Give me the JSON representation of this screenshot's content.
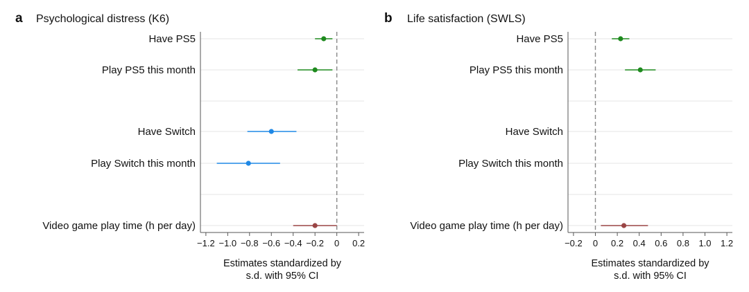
{
  "chart_data": [
    {
      "type": "forest",
      "panel_letter": "a",
      "title": "Psychological distress (K6)",
      "xlabel_lines": [
        "Estimates standardized by",
        "s.d. with 95% CI"
      ],
      "xlim": [
        -1.25,
        0.25
      ],
      "xticks": [
        -1.2,
        -1.0,
        -0.8,
        -0.6,
        -0.4,
        -0.2,
        0,
        0.2
      ],
      "xtick_labels": [
        "−1.2",
        "−1.0",
        "−0.8",
        "−0.6",
        "−0.4",
        "−0.2",
        "0",
        "0.2"
      ],
      "reference_line": 0,
      "rows": [
        {
          "label": "Have PS5",
          "estimate": -0.12,
          "ci": [
            -0.2,
            -0.04
          ],
          "color": "#1e8a1e"
        },
        {
          "label": "Play PS5 this month",
          "estimate": -0.2,
          "ci": [
            -0.36,
            -0.04
          ],
          "color": "#1e8a1e"
        },
        {
          "label": "Have Switch",
          "estimate": -0.6,
          "ci": [
            -0.82,
            -0.37
          ],
          "color": "#1f88e5"
        },
        {
          "label": "Play Switch this month",
          "estimate": -0.81,
          "ci": [
            -1.1,
            -0.52
          ],
          "color": "#1f88e5"
        },
        {
          "label": "Video game play time (h per day)",
          "estimate": -0.2,
          "ci": [
            -0.4,
            0.0
          ],
          "color": "#9a4545"
        }
      ]
    },
    {
      "type": "forest",
      "panel_letter": "b",
      "title": "Life satisfaction (SWLS)",
      "xlabel_lines": [
        "Estimates standardized by",
        "s.d. with 95% CI"
      ],
      "xlim": [
        -0.25,
        1.25
      ],
      "xticks": [
        -0.2,
        0,
        0.2,
        0.4,
        0.6,
        0.8,
        1.0,
        1.2
      ],
      "xtick_labels": [
        "−0.2",
        "0",
        "0.2",
        "0.4",
        "0.6",
        "0.8",
        "1.0",
        "1.2"
      ],
      "reference_line": 0,
      "rows": [
        {
          "label": "Have PS5",
          "estimate": 0.23,
          "ci": [
            0.15,
            0.31
          ],
          "color": "#1e8a1e"
        },
        {
          "label": "Play PS5 this month",
          "estimate": 0.41,
          "ci": [
            0.27,
            0.55
          ],
          "color": "#1e8a1e"
        },
        {
          "label": "Have Switch",
          "estimate": null,
          "ci": null,
          "color": "#1f88e5"
        },
        {
          "label": "Play Switch this month",
          "estimate": null,
          "ci": null,
          "color": "#1f88e5"
        },
        {
          "label": "Video game play time (h per day)",
          "estimate": 0.26,
          "ci": [
            0.05,
            0.48
          ],
          "color": "#9a4545"
        }
      ]
    }
  ]
}
